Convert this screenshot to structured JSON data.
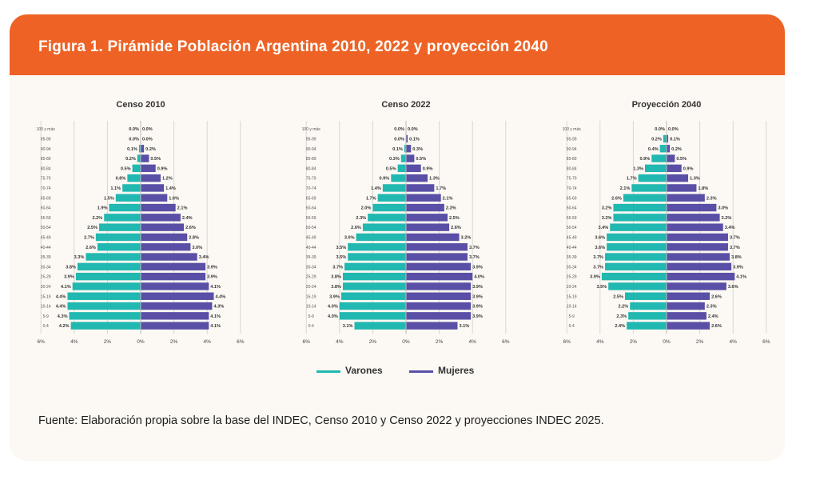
{
  "header": {
    "title": "Figura 1. Pirámide Población Argentina 2010, 2022 y proyección 2040"
  },
  "colors": {
    "header_bg": "#ee6325",
    "varones": "#20b8b0",
    "mujeres": "#5a4fa6",
    "card_bg": "#fcf8f3"
  },
  "legend": {
    "varones": "Varones",
    "mujeres": "Mujeres"
  },
  "footnote": "Fuente: Elaboración propia sobre la base del INDEC, Censo 2010 y Censo 2022 y proyecciones INDEC 2025.",
  "chart_data": [
    {
      "type": "bar",
      "title": "Censo 2010",
      "categories": [
        "100 y más",
        "95-99",
        "90-94",
        "85-89",
        "80-84",
        "75-79",
        "70-74",
        "65-69",
        "60-64",
        "55-59",
        "50-54",
        "45-49",
        "40-44",
        "35-39",
        "30-34",
        "25-29",
        "20-24",
        "15-19",
        "10-14",
        "5-9",
        "0-4"
      ],
      "series": [
        {
          "name": "Varones",
          "values": [
            0.0,
            0.0,
            0.1,
            0.2,
            0.5,
            0.8,
            1.1,
            1.5,
            1.9,
            2.2,
            2.5,
            2.7,
            2.6,
            3.3,
            3.8,
            3.9,
            4.1,
            4.4,
            4.4,
            4.3,
            4.2
          ]
        },
        {
          "name": "Mujeres",
          "values": [
            0.0,
            0.0,
            0.2,
            0.5,
            0.9,
            1.2,
            1.4,
            1.6,
            2.1,
            2.4,
            2.6,
            2.8,
            3.0,
            3.4,
            3.9,
            3.9,
            4.1,
            4.4,
            4.3,
            4.1,
            4.1
          ]
        }
      ],
      "value_labels": {
        "Varones": [
          "0.0%",
          "0.0%",
          "0.1%",
          "0.2%",
          "0.5%",
          "0.8%",
          "1.1%",
          "1.5%",
          "1.9%",
          "2.2%",
          "2.5%",
          "2.7%",
          "2.6%",
          "3.3%",
          "3.8%",
          "3.9%",
          "4.1%",
          "4.4%",
          "4.4%",
          "4.3%",
          "4.2%"
        ],
        "Mujeres": [
          "0.0%",
          "0.0%",
          "0.2%",
          "0.5%",
          "0.9%",
          "1.2%",
          "1.4%",
          "1.6%",
          "2.1%",
          "2.4%",
          "2.6%",
          "2.8%",
          "3.0%",
          "3.4%",
          "3.9%",
          "3.9%",
          "4.1%",
          "4.4%",
          "4.3%",
          "4.1%",
          "4.1%"
        ]
      },
      "x_ticks": [
        "6%",
        "4%",
        "2%",
        "0%",
        "2%",
        "4%",
        "6%"
      ],
      "xlim": [
        -6,
        6
      ],
      "grid": true
    },
    {
      "type": "bar",
      "title": "Censo 2022",
      "categories": [
        "100 y más",
        "95-99",
        "90-94",
        "85-89",
        "80-84",
        "75-79",
        "70-74",
        "65-69",
        "60-64",
        "55-59",
        "50-54",
        "45-49",
        "40-44",
        "35-39",
        "30-34",
        "25-29",
        "20-24",
        "15-19",
        "10-14",
        "5-9",
        "0-4"
      ],
      "series": [
        {
          "name": "Varones",
          "values": [
            0.0,
            0.0,
            0.1,
            0.3,
            0.5,
            0.9,
            1.4,
            1.7,
            2.0,
            2.3,
            2.6,
            3.0,
            3.5,
            3.5,
            3.7,
            3.8,
            3.8,
            3.9,
            4.0,
            4.0,
            3.1
          ]
        },
        {
          "name": "Mujeres",
          "values": [
            0.0,
            0.1,
            0.3,
            0.5,
            0.9,
            1.3,
            1.7,
            2.1,
            2.3,
            2.5,
            2.6,
            3.2,
            3.7,
            3.7,
            3.9,
            4.0,
            3.9,
            3.9,
            3.9,
            3.9,
            3.1
          ]
        }
      ],
      "value_labels": {
        "Varones": [
          "0.0%",
          "0.0%",
          "0.1%",
          "0.3%",
          "0.5%",
          "0.9%",
          "1.4%",
          "1.7%",
          "2.0%",
          "2.3%",
          "2.6%",
          "3.0%",
          "3.5%",
          "3.5%",
          "3.7%",
          "3.8%",
          "3.8%",
          "3.9%",
          "4.0%",
          "4.0%",
          "3.1%"
        ],
        "Mujeres": [
          "0.0%",
          "0.1%",
          "0.3%",
          "0.5%",
          "0.9%",
          "1.3%",
          "1.7%",
          "2.1%",
          "2.3%",
          "2.5%",
          "2.6%",
          "3.2%",
          "3.7%",
          "3.7%",
          "3.9%",
          "4.0%",
          "3.9%",
          "3.9%",
          "3.9%",
          "3.9%",
          "3.1%"
        ]
      },
      "x_ticks": [
        "6%",
        "4%",
        "2%",
        "0%",
        "2%",
        "4%",
        "6%"
      ],
      "xlim": [
        -6,
        6
      ],
      "grid": true
    },
    {
      "type": "bar",
      "title": "Proyección 2040",
      "categories": [
        "100 y más",
        "95-99",
        "90-94",
        "85-89",
        "80-84",
        "75-79",
        "70-74",
        "65-69",
        "60-64",
        "55-59",
        "50-54",
        "45-49",
        "40-44",
        "35-39",
        "30-34",
        "25-29",
        "20-24",
        "15-19",
        "10-14",
        "5-9",
        "0-4"
      ],
      "series": [
        {
          "name": "Varones",
          "values": [
            0.0,
            0.2,
            0.4,
            0.9,
            1.3,
            1.7,
            2.1,
            2.6,
            3.2,
            3.2,
            3.4,
            3.6,
            3.6,
            3.7,
            3.7,
            3.9,
            3.5,
            2.5,
            2.2,
            2.3,
            2.4
          ]
        },
        {
          "name": "Mujeres",
          "values": [
            0.0,
            0.1,
            0.2,
            0.5,
            0.9,
            1.3,
            1.8,
            2.3,
            3.0,
            3.2,
            3.4,
            3.7,
            3.7,
            3.8,
            3.9,
            4.1,
            3.6,
            2.6,
            2.3,
            2.4,
            2.6
          ]
        }
      ],
      "value_labels": {
        "Varones": [
          "0.0%",
          "0.2%",
          "0.4%",
          "0.9%",
          "1.3%",
          "1.7%",
          "2.1%",
          "2.6%",
          "3.2%",
          "3.2%",
          "3.4%",
          "3.6%",
          "3.6%",
          "3.7%",
          "3.7%",
          "3.9%",
          "3.5%",
          "2.5%",
          "2.2%",
          "2.3%",
          "2.4%"
        ],
        "Mujeres": [
          "0.0%",
          "0.1%",
          "0.2%",
          "0.5%",
          "0.9%",
          "1.3%",
          "1.8%",
          "2.3%",
          "3.0%",
          "3.2%",
          "3.4%",
          "3.7%",
          "3.7%",
          "3.8%",
          "3.9%",
          "4.1%",
          "3.6%",
          "2.6%",
          "2.3%",
          "2.4%",
          "2.6%"
        ]
      },
      "x_ticks": [
        "6%",
        "4%",
        "2%",
        "0%",
        "2%",
        "4%",
        "6%"
      ],
      "xlim": [
        -6,
        6
      ],
      "grid": true
    }
  ]
}
